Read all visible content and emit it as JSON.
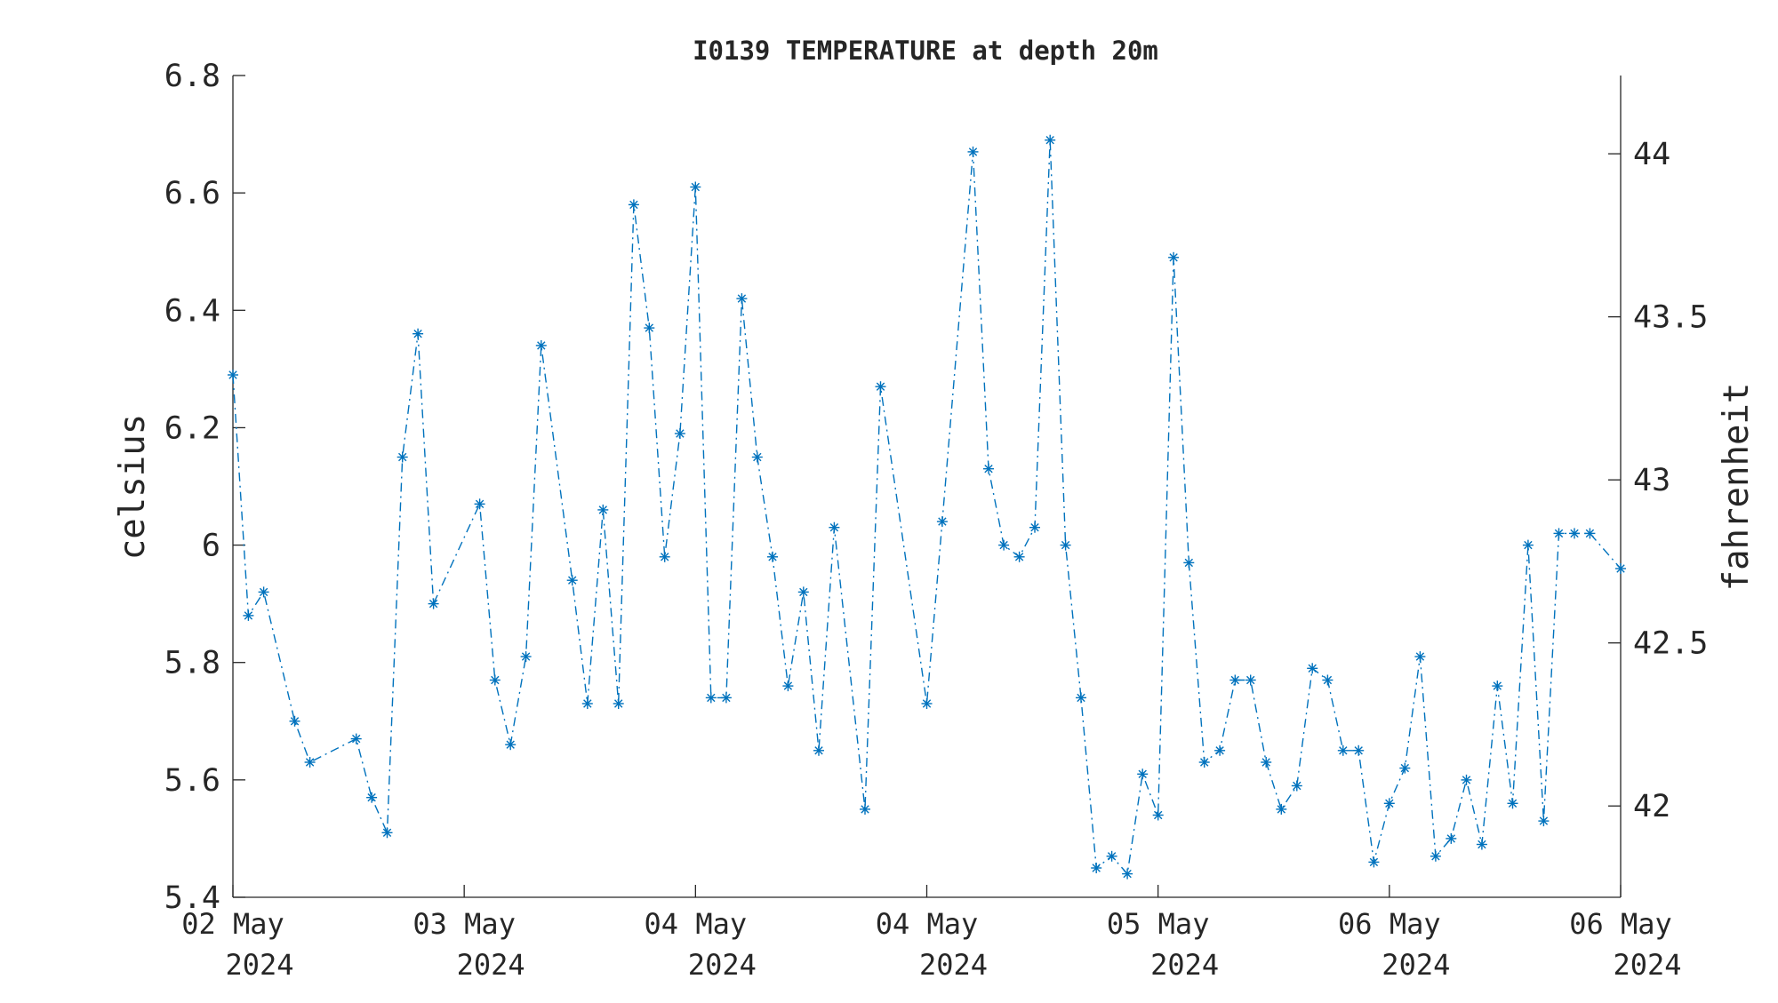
{
  "chart_data": {
    "type": "line",
    "title": "I0139 TEMPERATURE at depth 20m",
    "ylabel": "celsius",
    "ylabel_right": "fahrenheit",
    "ylim": [
      5.4,
      6.8
    ],
    "yticks": [
      "5.4",
      "5.6",
      "5.8",
      "6",
      "6.2",
      "6.4",
      "6.6",
      "6.8"
    ],
    "yticks_right": [
      "42",
      "42.5",
      "43",
      "43.5",
      "44"
    ],
    "yticks_right_values": [
      42,
      42.5,
      43,
      43.5,
      44
    ],
    "xlim": [
      0,
      6
    ],
    "xticks": [
      {
        "line1": "02 May",
        "line2": "2024"
      },
      {
        "line1": "03 May",
        "line2": "2024"
      },
      {
        "line1": "04 May",
        "line2": "2024"
      },
      {
        "line1": "04 May",
        "line2": "2024"
      },
      {
        "line1": "05 May",
        "line2": "2024"
      },
      {
        "line1": "06 May",
        "line2": "2024"
      },
      {
        "line1": "06 May",
        "line2": "2024"
      }
    ],
    "grid": false,
    "line_style": "dash-dot",
    "marker": "asterisk",
    "color": "#0072BD",
    "series": [
      {
        "x": [
          0,
          0.067,
          0.133,
          0.267,
          0.333,
          0.533,
          0.6,
          0.667,
          0.733,
          0.8,
          0.867,
          1.067,
          1.133,
          1.2,
          1.267,
          1.333,
          1.467,
          1.533,
          1.6,
          1.667,
          1.733,
          1.8,
          1.867,
          1.933,
          2.0,
          2.067,
          2.133,
          2.2,
          2.267,
          2.333,
          2.4,
          2.467,
          2.533,
          2.6,
          2.733,
          2.8,
          3.0,
          3.067,
          3.2,
          3.267,
          3.333,
          3.4,
          3.467,
          3.533,
          3.6,
          3.667,
          3.733,
          3.8,
          3.867,
          3.933,
          4.0,
          4.067,
          4.133,
          4.2,
          4.267,
          4.333,
          4.4,
          4.467,
          4.533,
          4.6,
          4.667,
          4.733,
          4.8,
          4.867,
          4.933,
          5.0,
          5.067,
          5.133,
          5.2,
          5.267,
          5.333,
          5.4,
          5.467,
          5.533,
          5.6,
          5.667,
          5.733,
          5.8,
          5.867,
          6.0
        ],
        "values": [
          6.29,
          5.88,
          5.92,
          5.7,
          5.63,
          5.67,
          5.57,
          5.51,
          6.15,
          6.36,
          5.9,
          6.07,
          5.77,
          5.66,
          5.81,
          6.34,
          5.94,
          5.73,
          6.06,
          5.73,
          6.58,
          6.37,
          5.98,
          6.19,
          6.61,
          5.74,
          5.74,
          6.42,
          6.15,
          5.98,
          5.76,
          5.92,
          5.65,
          6.03,
          5.55,
          6.27,
          5.73,
          6.04,
          6.67,
          6.13,
          6.0,
          5.98,
          6.03,
          6.69,
          6.0,
          5.74,
          5.45,
          5.47,
          5.44,
          5.61,
          5.54,
          6.49,
          5.97,
          5.63,
          5.65,
          5.77,
          5.77,
          5.63,
          5.55,
          5.59,
          5.79,
          5.77,
          5.65,
          5.65,
          5.46,
          5.56,
          5.62,
          5.81,
          5.47,
          5.5,
          5.6,
          5.49,
          5.76,
          5.56,
          6.0,
          5.53,
          6.02,
          6.02,
          6.02,
          5.96
        ]
      }
    ]
  }
}
